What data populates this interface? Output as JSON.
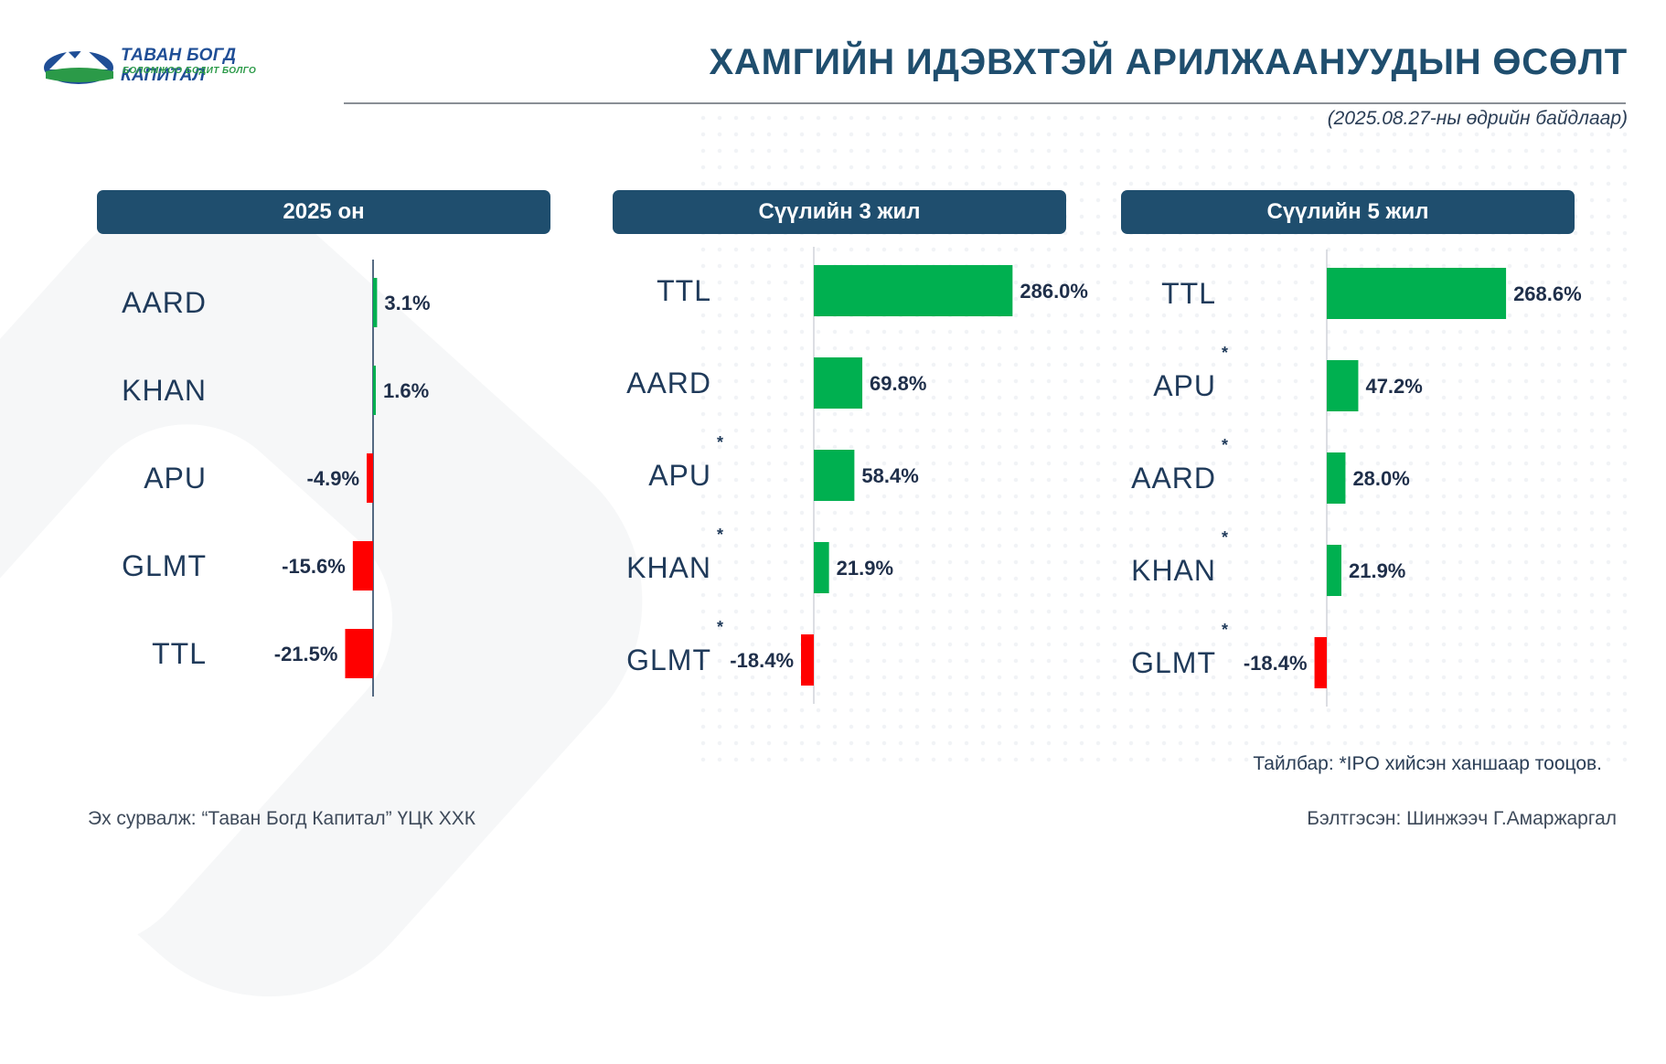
{
  "header": {
    "logo_name": "ТАВАН БОГД КАПИТАЛ",
    "logo_tagline": "БОЛОМЖОО БОДИТ БОЛГО",
    "title": "ХАМГИЙН ИДЭВХТЭЙ АРИЛЖААНУУДЫН ӨСӨЛТ",
    "subtitle": "(2025.08.27-ны өдрийн байдлаар)"
  },
  "colors": {
    "positive": "#00b050",
    "negative": "#ff0000",
    "header_bg": "#1f4e6e",
    "label_text": "#1f3a5a"
  },
  "chart_data": [
    {
      "type": "bar",
      "orientation": "horizontal",
      "title": "2025 он",
      "categories": [
        "AARD",
        "KHAN",
        "APU",
        "GLMT",
        "TTL"
      ],
      "values": [
        3.1,
        1.6,
        -4.9,
        -15.6,
        -21.5
      ],
      "value_labels": [
        "3.1%",
        "1.6%",
        "-4.9%",
        "-15.6%",
        "-21.5%"
      ],
      "ipo_marked": [
        false,
        false,
        false,
        false,
        false
      ],
      "unit": "%"
    },
    {
      "type": "bar",
      "orientation": "horizontal",
      "title": "Сүүлийн 3 жил",
      "categories": [
        "TTL",
        "AARD",
        "APU",
        "KHAN",
        "GLMT"
      ],
      "values": [
        286.0,
        69.8,
        58.4,
        21.9,
        -18.4
      ],
      "value_labels": [
        "286.0%",
        "69.8%",
        "58.4%",
        "21.9%",
        "-18.4%"
      ],
      "ipo_marked": [
        false,
        false,
        true,
        true,
        true
      ],
      "unit": "%"
    },
    {
      "type": "bar",
      "orientation": "horizontal",
      "title": "Сүүлийн 5 жил",
      "categories": [
        "TTL",
        "APU",
        "AARD",
        "KHAN",
        "GLMT"
      ],
      "values": [
        268.6,
        47.2,
        28.0,
        21.9,
        -18.4
      ],
      "value_labels": [
        "268.6%",
        "47.2%",
        "28.0%",
        "21.9%",
        "-18.4%"
      ],
      "ipo_marked": [
        false,
        true,
        true,
        true,
        true
      ],
      "unit": "%"
    }
  ],
  "ipo_marker": "*",
  "note": "Тайлбар: *IPO хийсэн ханшаар тооцов.",
  "footer": {
    "source": "Эх сурвалж: “Таван Богд Капитал” ҮЦК ХХК",
    "prepared_by": "Бэлтгэсэн: Шинжээч Г.Амаржаргал"
  }
}
